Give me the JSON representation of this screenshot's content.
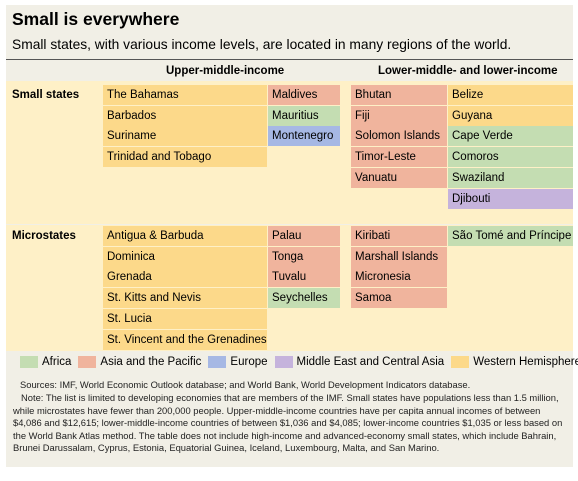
{
  "title": "Small is everywhere",
  "subtitle": "Small states, with various income levels, are located in many regions of the world.",
  "column_headers": {
    "upper_middle": "Upper-middle-income",
    "lower_middle": "Lower-middle- and lower-income"
  },
  "rows": {
    "small_states": "Small states",
    "microstates": "Microstates"
  },
  "small_states": {
    "upper_wh": [
      "The Bahamas",
      "Barbados",
      "Suriname",
      "Trinidad and Tobago"
    ],
    "upper_other": [
      {
        "name": "Maldives",
        "region": "Asia and the Pacific"
      },
      {
        "name": "Mauritius",
        "region": "Africa"
      },
      {
        "name": "Montenegro",
        "region": "Europe"
      }
    ],
    "lower_ap": [
      "Bhutan",
      "Fiji",
      "Solomon Islands",
      "Timor-Leste",
      "Vanuatu"
    ],
    "lower_other": [
      {
        "name": "Belize",
        "region": "Western Hemisphere"
      },
      {
        "name": "Guyana",
        "region": "Western Hemisphere"
      },
      {
        "name": "Cape Verde",
        "region": "Africa"
      },
      {
        "name": "Comoros",
        "region": "Africa"
      },
      {
        "name": "Swaziland",
        "region": "Africa"
      },
      {
        "name": "Djibouti",
        "region": "Middle East and Central Asia"
      }
    ]
  },
  "microstates": {
    "upper_wh": [
      "Antigua & Barbuda",
      "Dominica",
      "Grenada",
      "St. Kitts and Nevis",
      "St. Lucia",
      "St. Vincent and the Grenadines"
    ],
    "upper_other": [
      {
        "name": "Palau",
        "region": "Asia and the Pacific"
      },
      {
        "name": "Tonga",
        "region": "Asia and the Pacific"
      },
      {
        "name": "Tuvalu",
        "region": "Asia and the Pacific"
      },
      {
        "name": "Seychelles",
        "region": "Africa"
      }
    ],
    "lower_ap": [
      "Kiribati",
      "Marshall Islands",
      "Micronesia",
      "Samoa"
    ],
    "lower_other": [
      {
        "name": "São Tomé and Príncipe",
        "region": "Africa"
      }
    ]
  },
  "legend": [
    {
      "label": "Africa",
      "color": "#c4ddb2"
    },
    {
      "label": "Asia and the Pacific",
      "color": "#f0b49d"
    },
    {
      "label": "Europe",
      "color": "#a6b8e4"
    },
    {
      "label": "Middle East and Central Asia",
      "color": "#c5b3dc"
    },
    {
      "label": "Western Hemisphere",
      "color": "#fcd98a"
    }
  ],
  "sources": "Sources: IMF, World Economic Outlook database; and World Bank, World Development Indicators database.",
  "note": "Note: The list is limited to developing economies that are members of the IMF. Small states have populations less than 1.5 million, while microstates have fewer than 200,000 people. Upper-middle-income countries have per capita annual incomes of between $4,086 and $12,615; lower-middle-income countries of between $1,036 and $4,085; lower-income countries $1,035 or less based on the World Bank Atlas method. The table does not include high-income and advanced-economy small states, which include Bahrain, Brunei Darussalam, Cyprus, Estonia, Equatorial Guinea, Iceland, Luxembourg, Malta, and San Marino."
}
